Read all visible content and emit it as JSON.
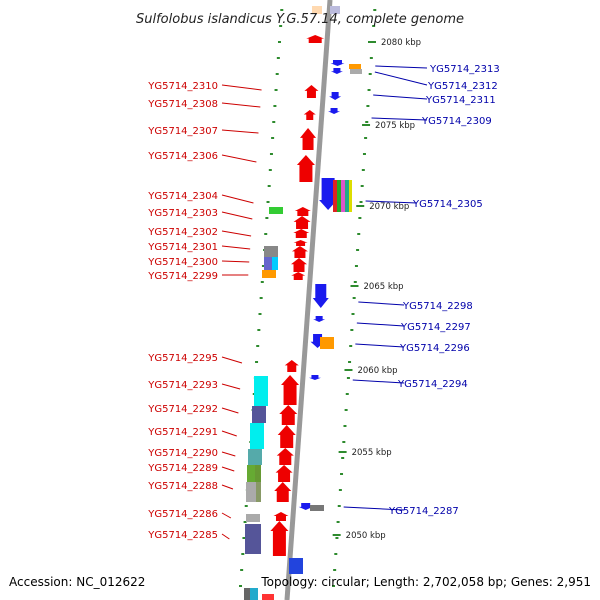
{
  "title": "Sulfolobus islandicus Y.G.57.14, complete genome",
  "accession": "Accession: NC_012622",
  "topology": "Topology: circular; Length: 2,702,058 bp; Genes: 2,951",
  "colors": {
    "forward": "#ee0000",
    "reverse": "#1a1aee",
    "backbone": "#999999",
    "ticks": "#2e8b2e",
    "label_forward": "#cc0000",
    "label_reverse": "#0000aa"
  },
  "scale_labels": [
    "2080 kbp",
    "2075 kbp",
    "2070 kbp",
    "2065 kbp",
    "2060 kbp",
    "2055 kbp",
    "2050 kbp"
  ],
  "forward_genes": [
    "YG5714_2310",
    "YG5714_2308",
    "YG5714_2307",
    "YG5714_2306",
    "YG5714_2304",
    "YG5714_2303",
    "YG5714_2302",
    "YG5714_2301",
    "YG5714_2300",
    "YG5714_2299",
    "YG5714_2295",
    "YG5714_2293",
    "YG5714_2292",
    "YG5714_2291",
    "YG5714_2290",
    "YG5714_2289",
    "YG5714_2288",
    "YG5714_2286",
    "YG5714_2285"
  ],
  "reverse_genes": [
    "YG5714_2313",
    "YG5714_2312",
    "YG5714_2311",
    "YG5714_2309",
    "YG5714_2305",
    "YG5714_2298",
    "YG5714_2297",
    "YG5714_2296",
    "YG5714_2294",
    "YG5714_2287"
  ]
}
